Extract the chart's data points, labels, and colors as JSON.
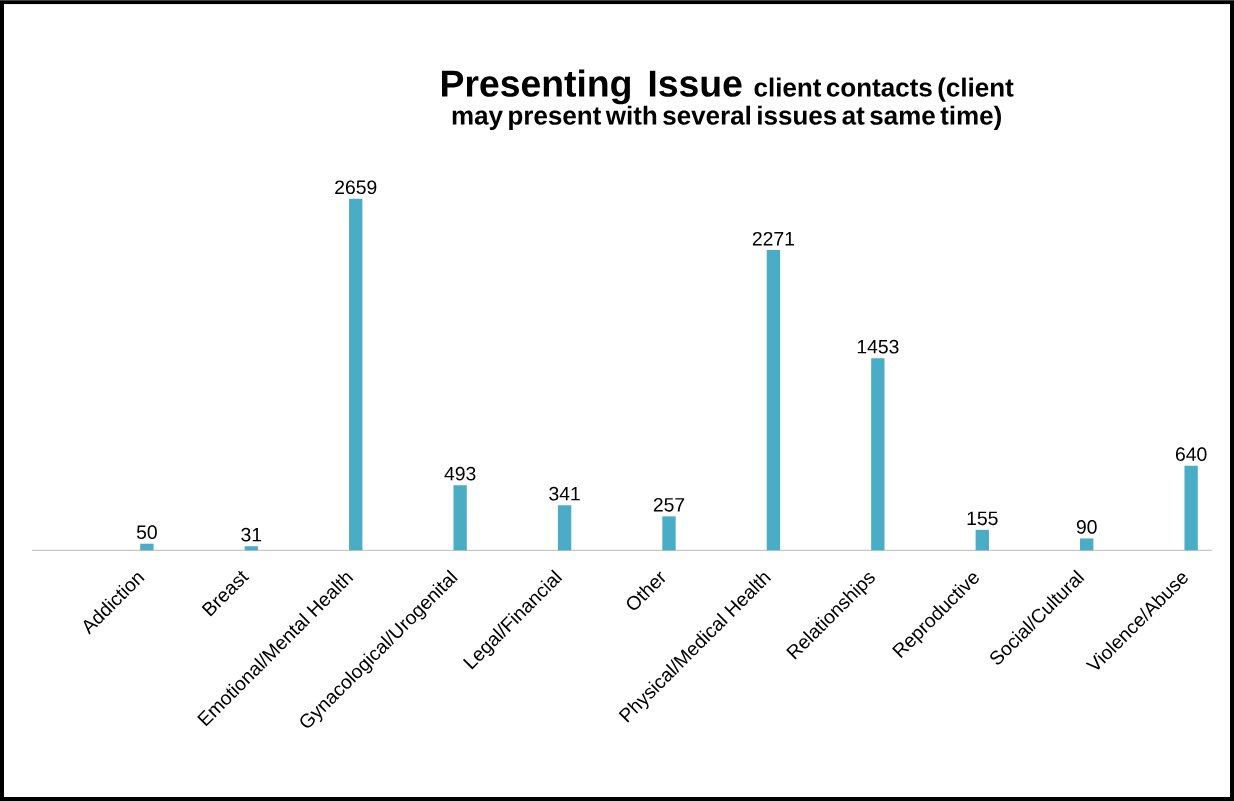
{
  "chart_data": {
    "type": "bar",
    "title": "Presenting Issue",
    "subtitle": "client contacts (client may present with several issues at same time)",
    "categories": [
      "Addiction",
      "Breast",
      "Emotional/Mental Health",
      "Gynacological/Urogenital",
      "Legal/Financial",
      "Other",
      "Physical/Medical Health",
      "Relationships",
      "Reproductive",
      "Social/Cultural",
      "Violence/Abuse"
    ],
    "values": [
      50,
      31,
      2659,
      493,
      341,
      257,
      2271,
      1453,
      155,
      90,
      640
    ],
    "color": "#4bacc6",
    "data_labels": true
  }
}
